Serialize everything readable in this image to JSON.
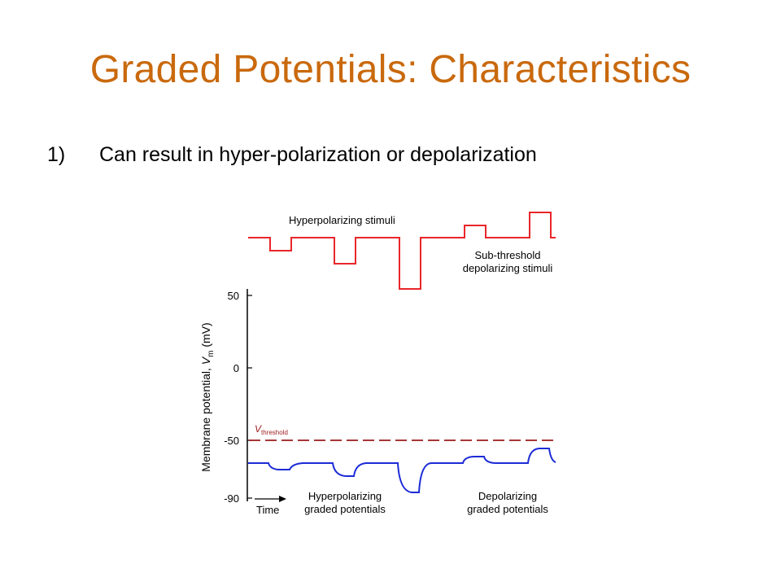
{
  "slide": {
    "title": "Graded Potentials: Characteristics",
    "bullet_number": "1)",
    "bullet_text": "Can result in hyper-polarization or depolarization"
  },
  "figure": {
    "stimulus_labels": {
      "hyperpolarizing": "Hyperpolarizing stimuli",
      "depolarizing_line1": "Sub-threshold",
      "depolarizing_line2": "depolarizing stimuli"
    },
    "y_axis": {
      "label_prefix": "Membrane potential, ",
      "label_var": "V",
      "label_sub": "m",
      "label_suffix": " (mV)",
      "ticks": [
        "50",
        "0",
        "-50",
        "-90"
      ]
    },
    "threshold": {
      "var": "V",
      "sub": "threshold"
    },
    "time_label": "Time",
    "response_labels": {
      "hyper_line1": "Hyperpolarizing",
      "hyper_line2": "graded potentials",
      "depol_line1": "Depolarizing",
      "depol_line2": "graded potentials"
    },
    "colors": {
      "title": "#c9690d",
      "stimulus_trace": "#e8262a",
      "membrane_trace": "#1c2bd6",
      "threshold_line": "#9b1b1b"
    }
  }
}
